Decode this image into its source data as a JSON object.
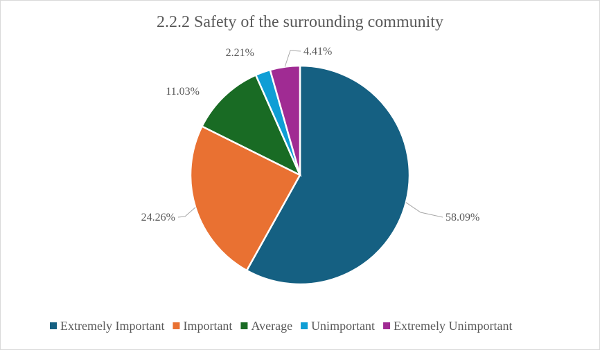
{
  "chart_data": {
    "type": "pie",
    "title": "2.2.2 Safety of the surrounding community",
    "categories": [
      "Extremely Important",
      "Important",
      "Average",
      "Unimportant",
      "Extremely Unimportant"
    ],
    "values": [
      58.09,
      24.26,
      11.03,
      2.21,
      4.41
    ],
    "labels": [
      "58.09%",
      "24.26%",
      "11.03%",
      "2.21%",
      "4.41%"
    ],
    "colors": [
      "#156082",
      "#E97132",
      "#196B24",
      "#0F9ED5",
      "#A02B93"
    ],
    "legend_position": "bottom",
    "start_angle": "12 o'clock",
    "direction": "clockwise"
  }
}
